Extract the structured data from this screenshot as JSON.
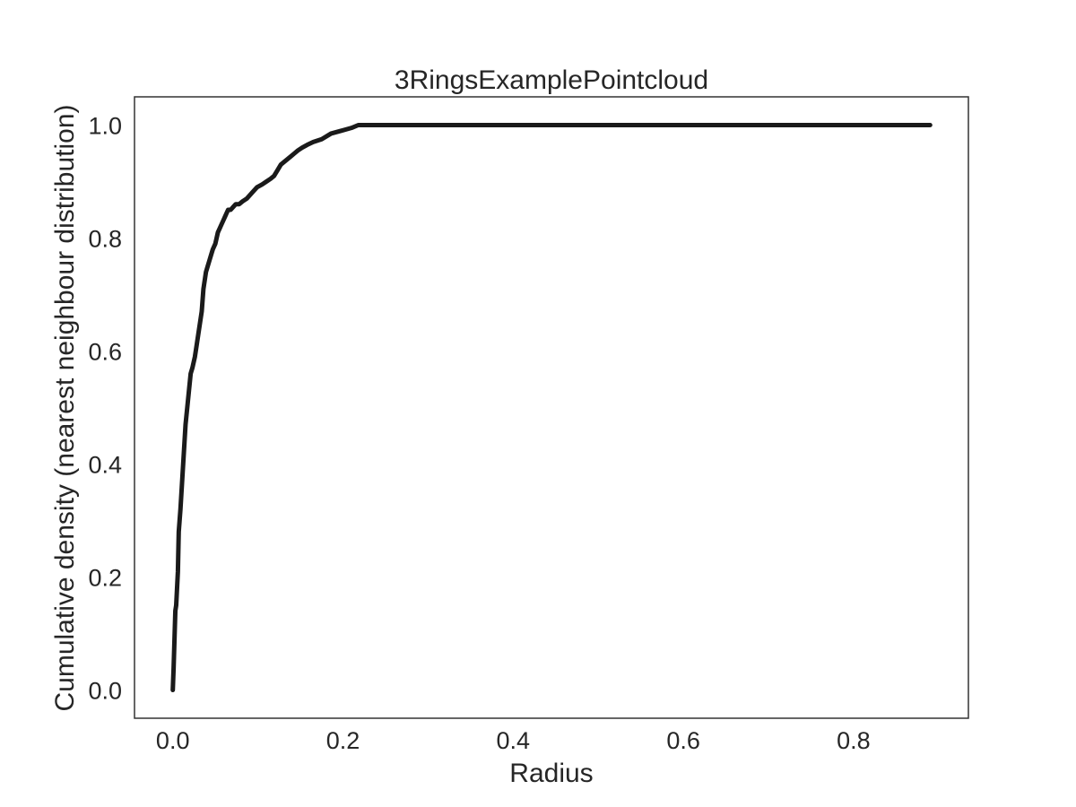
{
  "chart_data": {
    "type": "line",
    "title": "3RingsExamplePointcloud",
    "xlabel": "Radius",
    "ylabel": "Cumulative density (nearest neighbour distribution)",
    "xlim": [
      -0.045,
      0.935
    ],
    "ylim": [
      -0.05,
      1.05
    ],
    "xticks": [
      0.0,
      0.2,
      0.4,
      0.6,
      0.8
    ],
    "yticks": [
      0.0,
      0.2,
      0.4,
      0.6,
      0.8,
      1.0
    ],
    "xtick_labels": [
      "0.0",
      "0.2",
      "0.4",
      "0.6",
      "0.8"
    ],
    "ytick_labels": [
      "0.0",
      "0.2",
      "0.4",
      "0.6",
      "0.8",
      "1.0"
    ],
    "grid": false,
    "legend": false,
    "series": [
      {
        "color": "#1a1a1a",
        "x": [
          0.0,
          0.001,
          0.002,
          0.003,
          0.004,
          0.006,
          0.007,
          0.009,
          0.011,
          0.013,
          0.015,
          0.017,
          0.019,
          0.021,
          0.023,
          0.026,
          0.028,
          0.03,
          0.032,
          0.034,
          0.035,
          0.036,
          0.037,
          0.038,
          0.039,
          0.041,
          0.043,
          0.045,
          0.047,
          0.05,
          0.053,
          0.056,
          0.059,
          0.062,
          0.065,
          0.068,
          0.071,
          0.074,
          0.078,
          0.082,
          0.087,
          0.093,
          0.099,
          0.105,
          0.11,
          0.115,
          0.119,
          0.123,
          0.127,
          0.131,
          0.135,
          0.139,
          0.143,
          0.147,
          0.152,
          0.158,
          0.165,
          0.175,
          0.186,
          0.198,
          0.21,
          0.218,
          0.3,
          0.45,
          0.6,
          0.75,
          0.89
        ],
        "y": [
          0.0,
          0.04,
          0.09,
          0.14,
          0.15,
          0.21,
          0.28,
          0.32,
          0.37,
          0.42,
          0.47,
          0.5,
          0.53,
          0.56,
          0.57,
          0.59,
          0.61,
          0.63,
          0.65,
          0.67,
          0.69,
          0.71,
          0.72,
          0.73,
          0.74,
          0.75,
          0.76,
          0.77,
          0.78,
          0.79,
          0.81,
          0.82,
          0.83,
          0.84,
          0.85,
          0.85,
          0.855,
          0.86,
          0.86,
          0.865,
          0.87,
          0.88,
          0.89,
          0.895,
          0.9,
          0.905,
          0.91,
          0.92,
          0.93,
          0.935,
          0.94,
          0.945,
          0.95,
          0.955,
          0.96,
          0.965,
          0.97,
          0.975,
          0.985,
          0.99,
          0.995,
          1.0,
          1.0,
          1.0,
          1.0,
          1.0,
          1.0
        ]
      }
    ]
  }
}
